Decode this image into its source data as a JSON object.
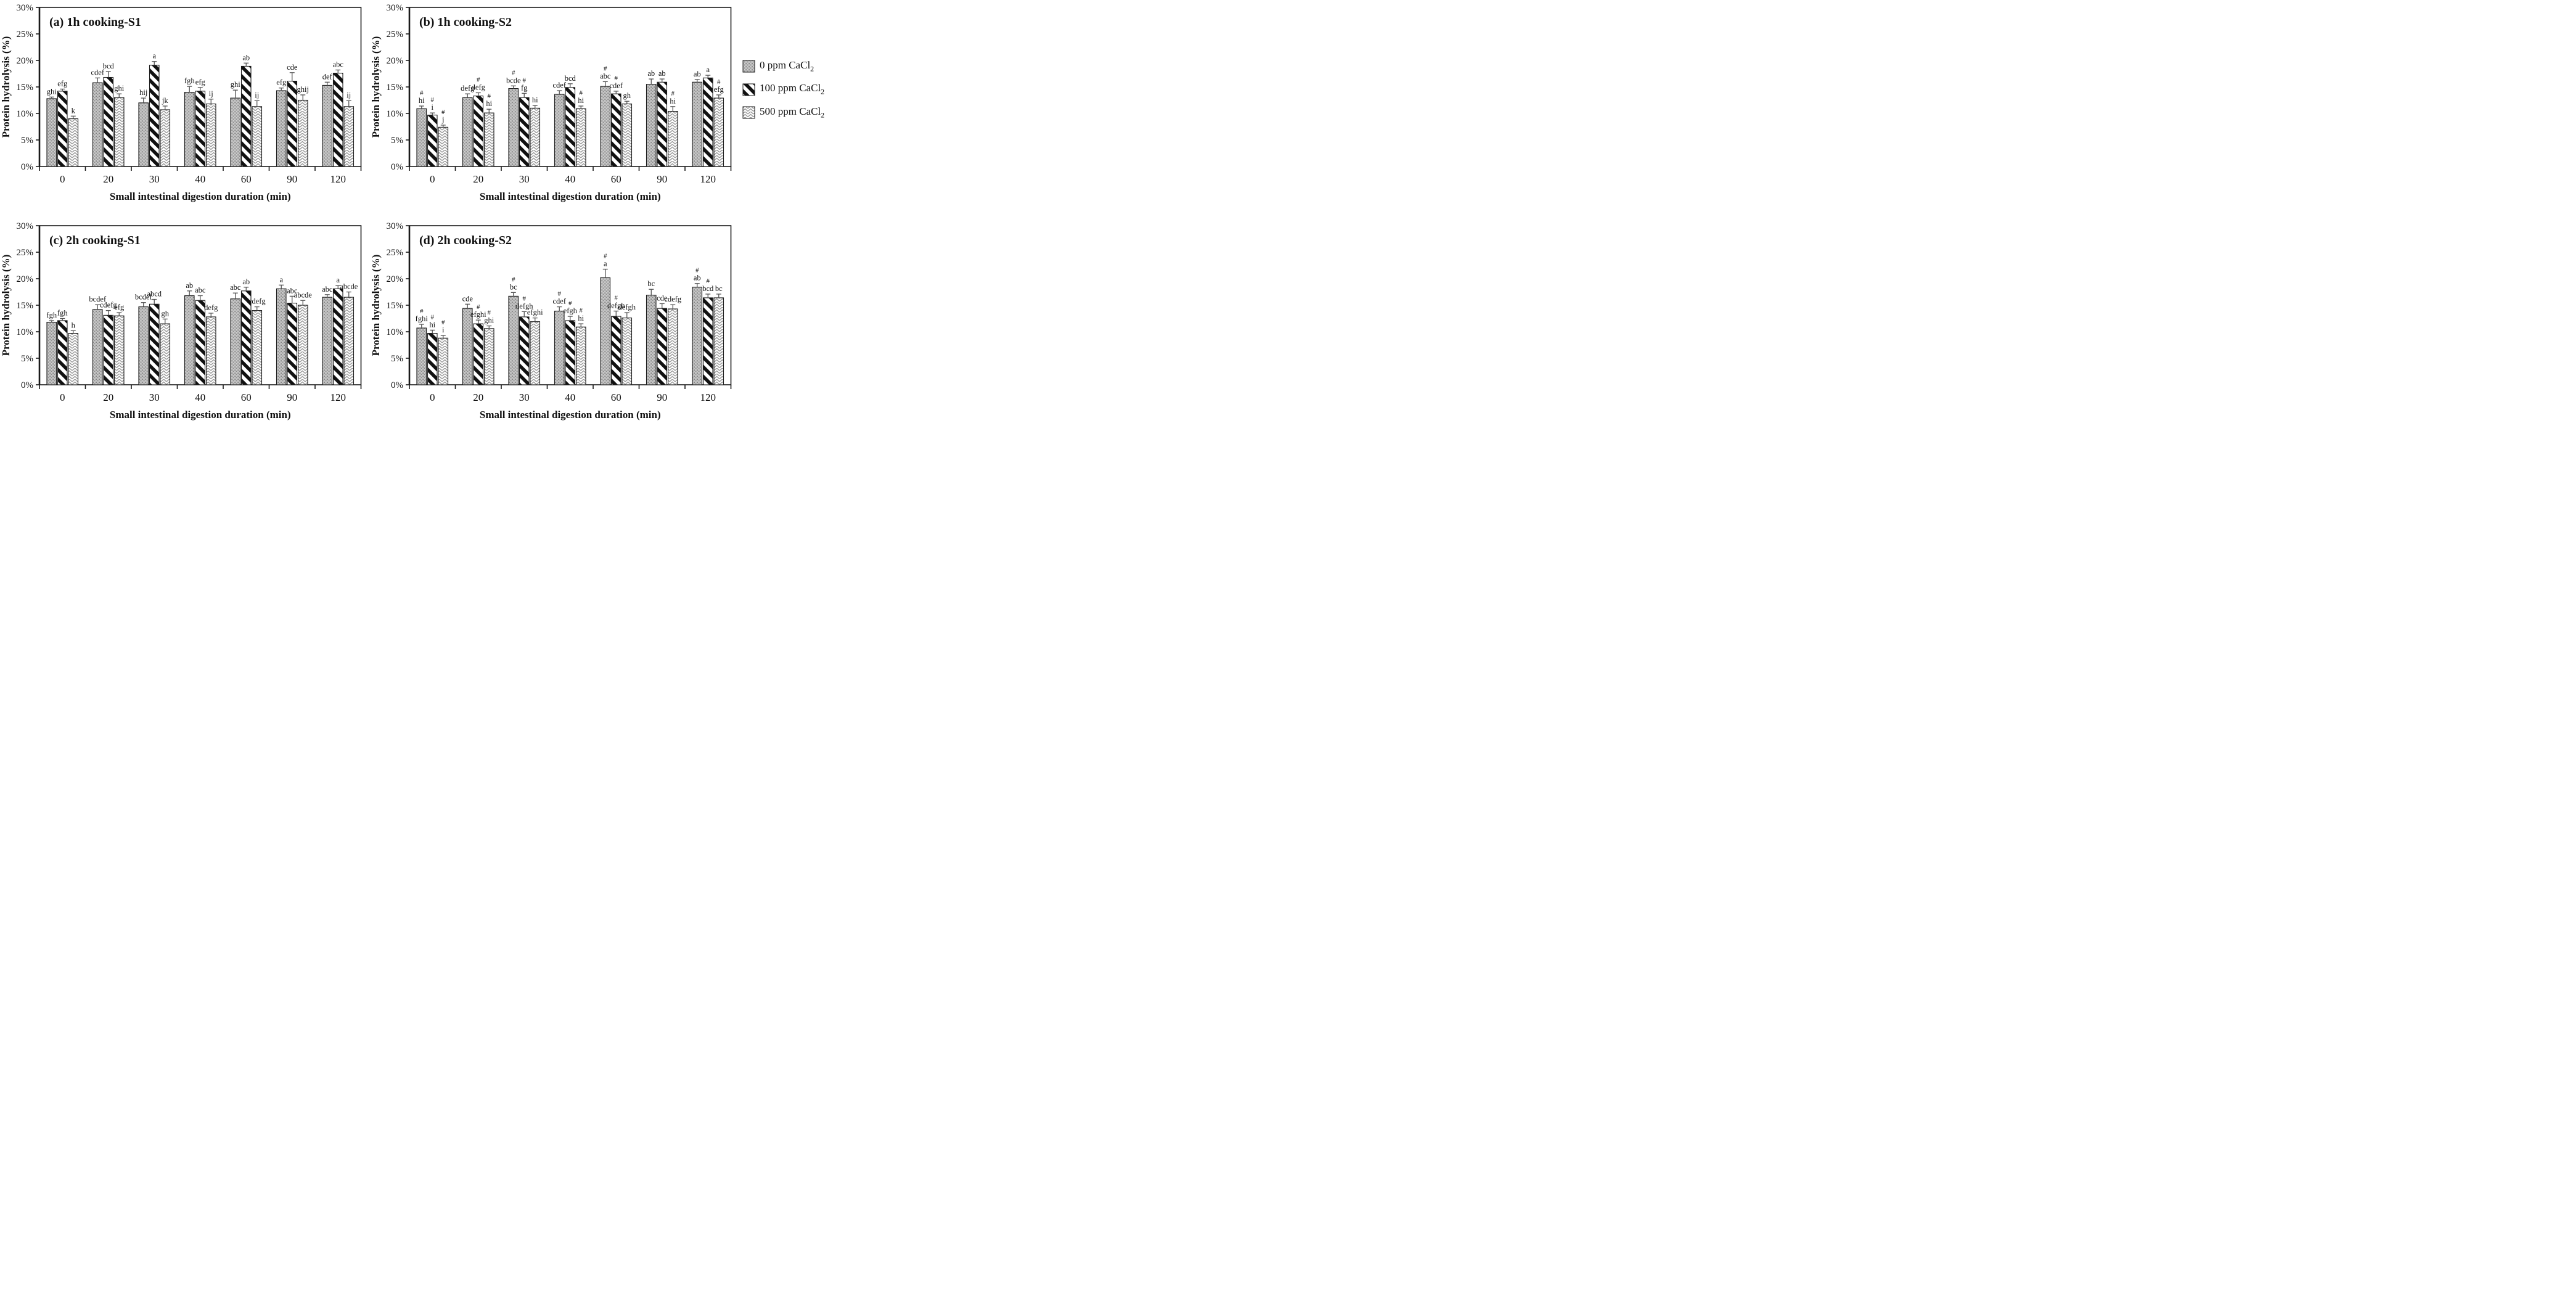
{
  "figure": {
    "background": "#ffffff",
    "colors": {
      "bar_outline": "#1a1a1a",
      "error_bar": "#555555",
      "axis": "#1a1a1a",
      "text": "#111111"
    },
    "note_markers": "#"
  },
  "axes": {
    "y_label": "Protein hydrolysis (%)",
    "x_label": "Small intestinal digestion duration (min)",
    "y_ticks": [
      0,
      5,
      10,
      15,
      20,
      25,
      30
    ],
    "y_tick_suffix": "%",
    "y_max": 30
  },
  "legend": {
    "items": [
      {
        "label": "0 ppm CaCl",
        "subscript": "2",
        "pattern": "dots"
      },
      {
        "label": "100 ppm CaCl",
        "subscript": "2",
        "pattern": "stripe"
      },
      {
        "label": "500 ppm CaCl",
        "subscript": "2",
        "pattern": "chevron"
      }
    ]
  },
  "chart_data": [
    {
      "type": "bar",
      "title": "(a) 1h cooking-S1",
      "categories": [
        "0",
        "20",
        "30",
        "40",
        "60",
        "90",
        "120"
      ],
      "ylim": [
        0,
        30
      ],
      "series": [
        {
          "name": "0 ppm CaCl2",
          "pattern": "dots",
          "values": [
            12.8,
            15.8,
            12.0,
            14.0,
            12.9,
            14.3,
            15.3
          ],
          "errors": [
            0.3,
            0.9,
            0.9,
            1.1,
            1.5,
            0.5,
            0.6
          ],
          "letters": [
            "ghi",
            "cdef",
            "hij",
            "fgh",
            "ghi",
            "efg",
            "def"
          ],
          "hash": [
            0,
            0,
            0,
            0,
            0,
            0,
            0
          ]
        },
        {
          "name": "100 ppm CaCl2",
          "pattern": "stripe",
          "values": [
            14.2,
            16.8,
            19.1,
            14.2,
            18.9,
            16.1,
            17.6
          ],
          "errors": [
            0.4,
            1.1,
            0.7,
            0.7,
            0.6,
            1.6,
            0.6
          ],
          "letters": [
            "efg",
            "bcd",
            "a",
            "efg",
            "ab",
            "cde",
            "abc"
          ],
          "hash": [
            0,
            0,
            0,
            0,
            0,
            0,
            0
          ]
        },
        {
          "name": "500 ppm CaCl2",
          "pattern": "chevron",
          "values": [
            9.0,
            13.0,
            10.7,
            11.8,
            11.3,
            12.5,
            11.3
          ],
          "errors": [
            0.5,
            0.7,
            0.7,
            0.9,
            1.1,
            1.0,
            1.1
          ],
          "letters": [
            "k",
            "ghi",
            "jk",
            "ij",
            "ij",
            "ghij",
            "ij"
          ],
          "hash": [
            0,
            0,
            0,
            0,
            0,
            0,
            0
          ]
        }
      ]
    },
    {
      "type": "bar",
      "title": "(b) 1h cooking-S2",
      "categories": [
        "0",
        "20",
        "30",
        "40",
        "60",
        "90",
        "120"
      ],
      "ylim": [
        0,
        30
      ],
      "series": [
        {
          "name": "0 ppm CaCl2",
          "pattern": "dots",
          "values": [
            10.9,
            13.0,
            14.7,
            13.6,
            15.1,
            15.5,
            15.9
          ],
          "errors": [
            0.5,
            0.7,
            0.5,
            0.7,
            0.9,
            1.0,
            0.5
          ],
          "letters": [
            "hi",
            "defg",
            "bcde",
            "cdef",
            "abc",
            "ab",
            "ab"
          ],
          "hash": [
            1,
            0,
            1,
            0,
            1,
            0,
            0
          ]
        },
        {
          "name": "100 ppm CaCl2",
          "pattern": "stripe",
          "values": [
            9.7,
            13.3,
            13.0,
            14.9,
            13.7,
            15.9,
            16.7
          ],
          "errors": [
            0.4,
            0.6,
            0.8,
            0.7,
            0.5,
            0.6,
            0.5
          ],
          "letters": [
            "i",
            "defg",
            "fg",
            "bcd",
            "cdef",
            "ab",
            "a"
          ],
          "hash": [
            1,
            1,
            1,
            0,
            1,
            0,
            0
          ]
        },
        {
          "name": "500 ppm CaCl2",
          "pattern": "chevron",
          "values": [
            7.4,
            10.1,
            11.0,
            10.9,
            11.8,
            10.4,
            12.9
          ],
          "errors": [
            0.4,
            0.7,
            0.5,
            0.5,
            0.5,
            0.9,
            0.6
          ],
          "letters": [
            "j",
            "hi",
            "hi",
            "hi",
            "gh",
            "hi",
            "efg"
          ],
          "hash": [
            1,
            1,
            0,
            1,
            0,
            1,
            1
          ]
        }
      ]
    },
    {
      "type": "bar",
      "title": "(c) 2h cooking-S1",
      "categories": [
        "0",
        "20",
        "30",
        "40",
        "60",
        "90",
        "120"
      ],
      "ylim": [
        0,
        30
      ],
      "series": [
        {
          "name": "0 ppm CaCl2",
          "pattern": "dots",
          "values": [
            11.8,
            14.2,
            14.7,
            16.8,
            16.2,
            18.1,
            16.5
          ],
          "errors": [
            0.3,
            0.9,
            0.8,
            0.9,
            1.1,
            0.7,
            0.5
          ],
          "letters": [
            "fgh",
            "bcdef",
            "bcdef",
            "ab",
            "abc",
            "a",
            "abc"
          ],
          "hash": [
            0,
            0,
            0,
            0,
            0,
            0,
            0
          ]
        },
        {
          "name": "100 ppm CaCl2",
          "pattern": "stripe",
          "values": [
            12.1,
            13.1,
            15.2,
            15.9,
            17.7,
            15.4,
            18.1
          ],
          "errors": [
            0.4,
            0.9,
            0.9,
            0.9,
            0.7,
            1.3,
            0.6
          ],
          "letters": [
            "fgh",
            "cdefg",
            "abcd",
            "abc",
            "ab",
            "abc",
            "a"
          ],
          "hash": [
            0,
            0,
            0,
            0,
            0,
            0,
            0
          ]
        },
        {
          "name": "500 ppm CaCl2",
          "pattern": "chevron",
          "values": [
            9.7,
            13.0,
            11.5,
            12.8,
            14.0,
            15.0,
            16.5
          ],
          "errors": [
            0.5,
            0.6,
            0.9,
            0.7,
            0.7,
            0.9,
            1.0
          ],
          "letters": [
            "h",
            "efg",
            "gh",
            "defg",
            "cdefg",
            "abcde",
            "abcde"
          ],
          "hash": [
            0,
            0,
            0,
            0,
            0,
            0,
            0
          ]
        }
      ]
    },
    {
      "type": "bar",
      "title": "(d) 2h cooking-S2",
      "categories": [
        "0",
        "20",
        "30",
        "40",
        "60",
        "90",
        "120"
      ],
      "ylim": [
        0,
        30
      ],
      "series": [
        {
          "name": "0 ppm CaCl2",
          "pattern": "dots",
          "values": [
            10.7,
            14.4,
            16.7,
            13.9,
            20.2,
            16.9,
            18.4
          ],
          "errors": [
            0.7,
            0.8,
            0.7,
            0.8,
            1.6,
            1.1,
            0.7
          ],
          "letters": [
            "fghi",
            "cde",
            "bc",
            "cdef",
            "a",
            "bc",
            "ab"
          ],
          "hash": [
            1,
            0,
            1,
            1,
            1,
            0,
            1
          ]
        },
        {
          "name": "100 ppm CaCl2",
          "pattern": "stripe",
          "values": [
            9.7,
            11.5,
            12.8,
            12.1,
            12.9,
            14.4,
            16.4
          ],
          "errors": [
            0.6,
            0.7,
            1.0,
            0.8,
            1.0,
            0.9,
            0.7
          ],
          "letters": [
            "hi",
            "efghi",
            "defgh",
            "efgh",
            "defgh",
            "cde",
            "bcd"
          ],
          "hash": [
            1,
            1,
            1,
            1,
            1,
            0,
            1
          ]
        },
        {
          "name": "500 ppm CaCl2",
          "pattern": "chevron",
          "values": [
            8.8,
            10.6,
            11.9,
            10.9,
            12.6,
            14.3,
            16.4
          ],
          "errors": [
            0.5,
            0.5,
            0.7,
            0.6,
            1.0,
            0.8,
            0.7
          ],
          "letters": [
            "i",
            "ghi",
            "efghi",
            "hi",
            "defgh",
            "cdefg",
            "bc"
          ],
          "hash": [
            1,
            1,
            0,
            1,
            0,
            0,
            0
          ]
        }
      ]
    }
  ]
}
